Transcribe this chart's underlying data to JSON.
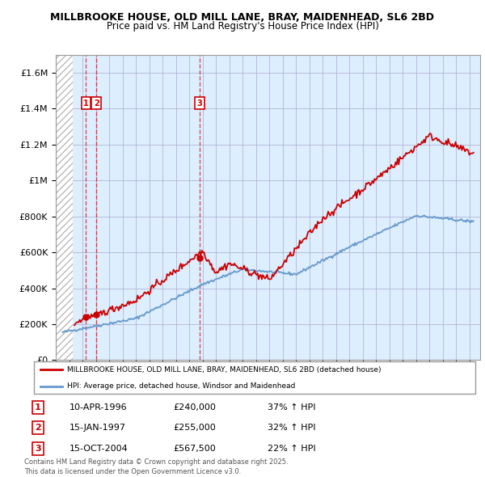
{
  "title_line1": "MILLBROOKE HOUSE, OLD MILL LANE, BRAY, MAIDENHEAD, SL6 2BD",
  "title_line2": "Price paid vs. HM Land Registry's House Price Index (HPI)",
  "ylabel_ticks": [
    "£0",
    "£200K",
    "£400K",
    "£600K",
    "£800K",
    "£1M",
    "£1.2M",
    "£1.4M",
    "£1.6M"
  ],
  "ytick_values": [
    0,
    200000,
    400000,
    600000,
    800000,
    1000000,
    1200000,
    1400000,
    1600000
  ],
  "ylim": [
    0,
    1700000
  ],
  "xlim_start": 1994.0,
  "xlim_end": 2025.8,
  "hatch_end": 1995.3,
  "purchases": [
    {
      "date_num": 1996.27,
      "price": 240000,
      "label": "1"
    },
    {
      "date_num": 1997.04,
      "price": 255000,
      "label": "2"
    },
    {
      "date_num": 2004.79,
      "price": 567500,
      "label": "3"
    }
  ],
  "legend_line1": "MILLBROOKE HOUSE, OLD MILL LANE, BRAY, MAIDENHEAD, SL6 2BD (detached house)",
  "legend_line2": "HPI: Average price, detached house, Windsor and Maidenhead",
  "table_rows": [
    {
      "num": "1",
      "date": "10-APR-1996",
      "price": "£240,000",
      "change": "37% ↑ HPI"
    },
    {
      "num": "2",
      "date": "15-JAN-1997",
      "price": "£255,000",
      "change": "32% ↑ HPI"
    },
    {
      "num": "3",
      "date": "15-OCT-2004",
      "price": "£567,500",
      "change": "22% ↑ HPI"
    }
  ],
  "footnote": "Contains HM Land Registry data © Crown copyright and database right 2025.\nThis data is licensed under the Open Government Licence v3.0.",
  "line_color_red": "#cc0000",
  "line_color_blue": "#6699cc",
  "bg_color": "#ddeeff",
  "hatch_color": "#bbbbbb",
  "grid_color": "#aaaacc",
  "box_color": "#cc0000"
}
